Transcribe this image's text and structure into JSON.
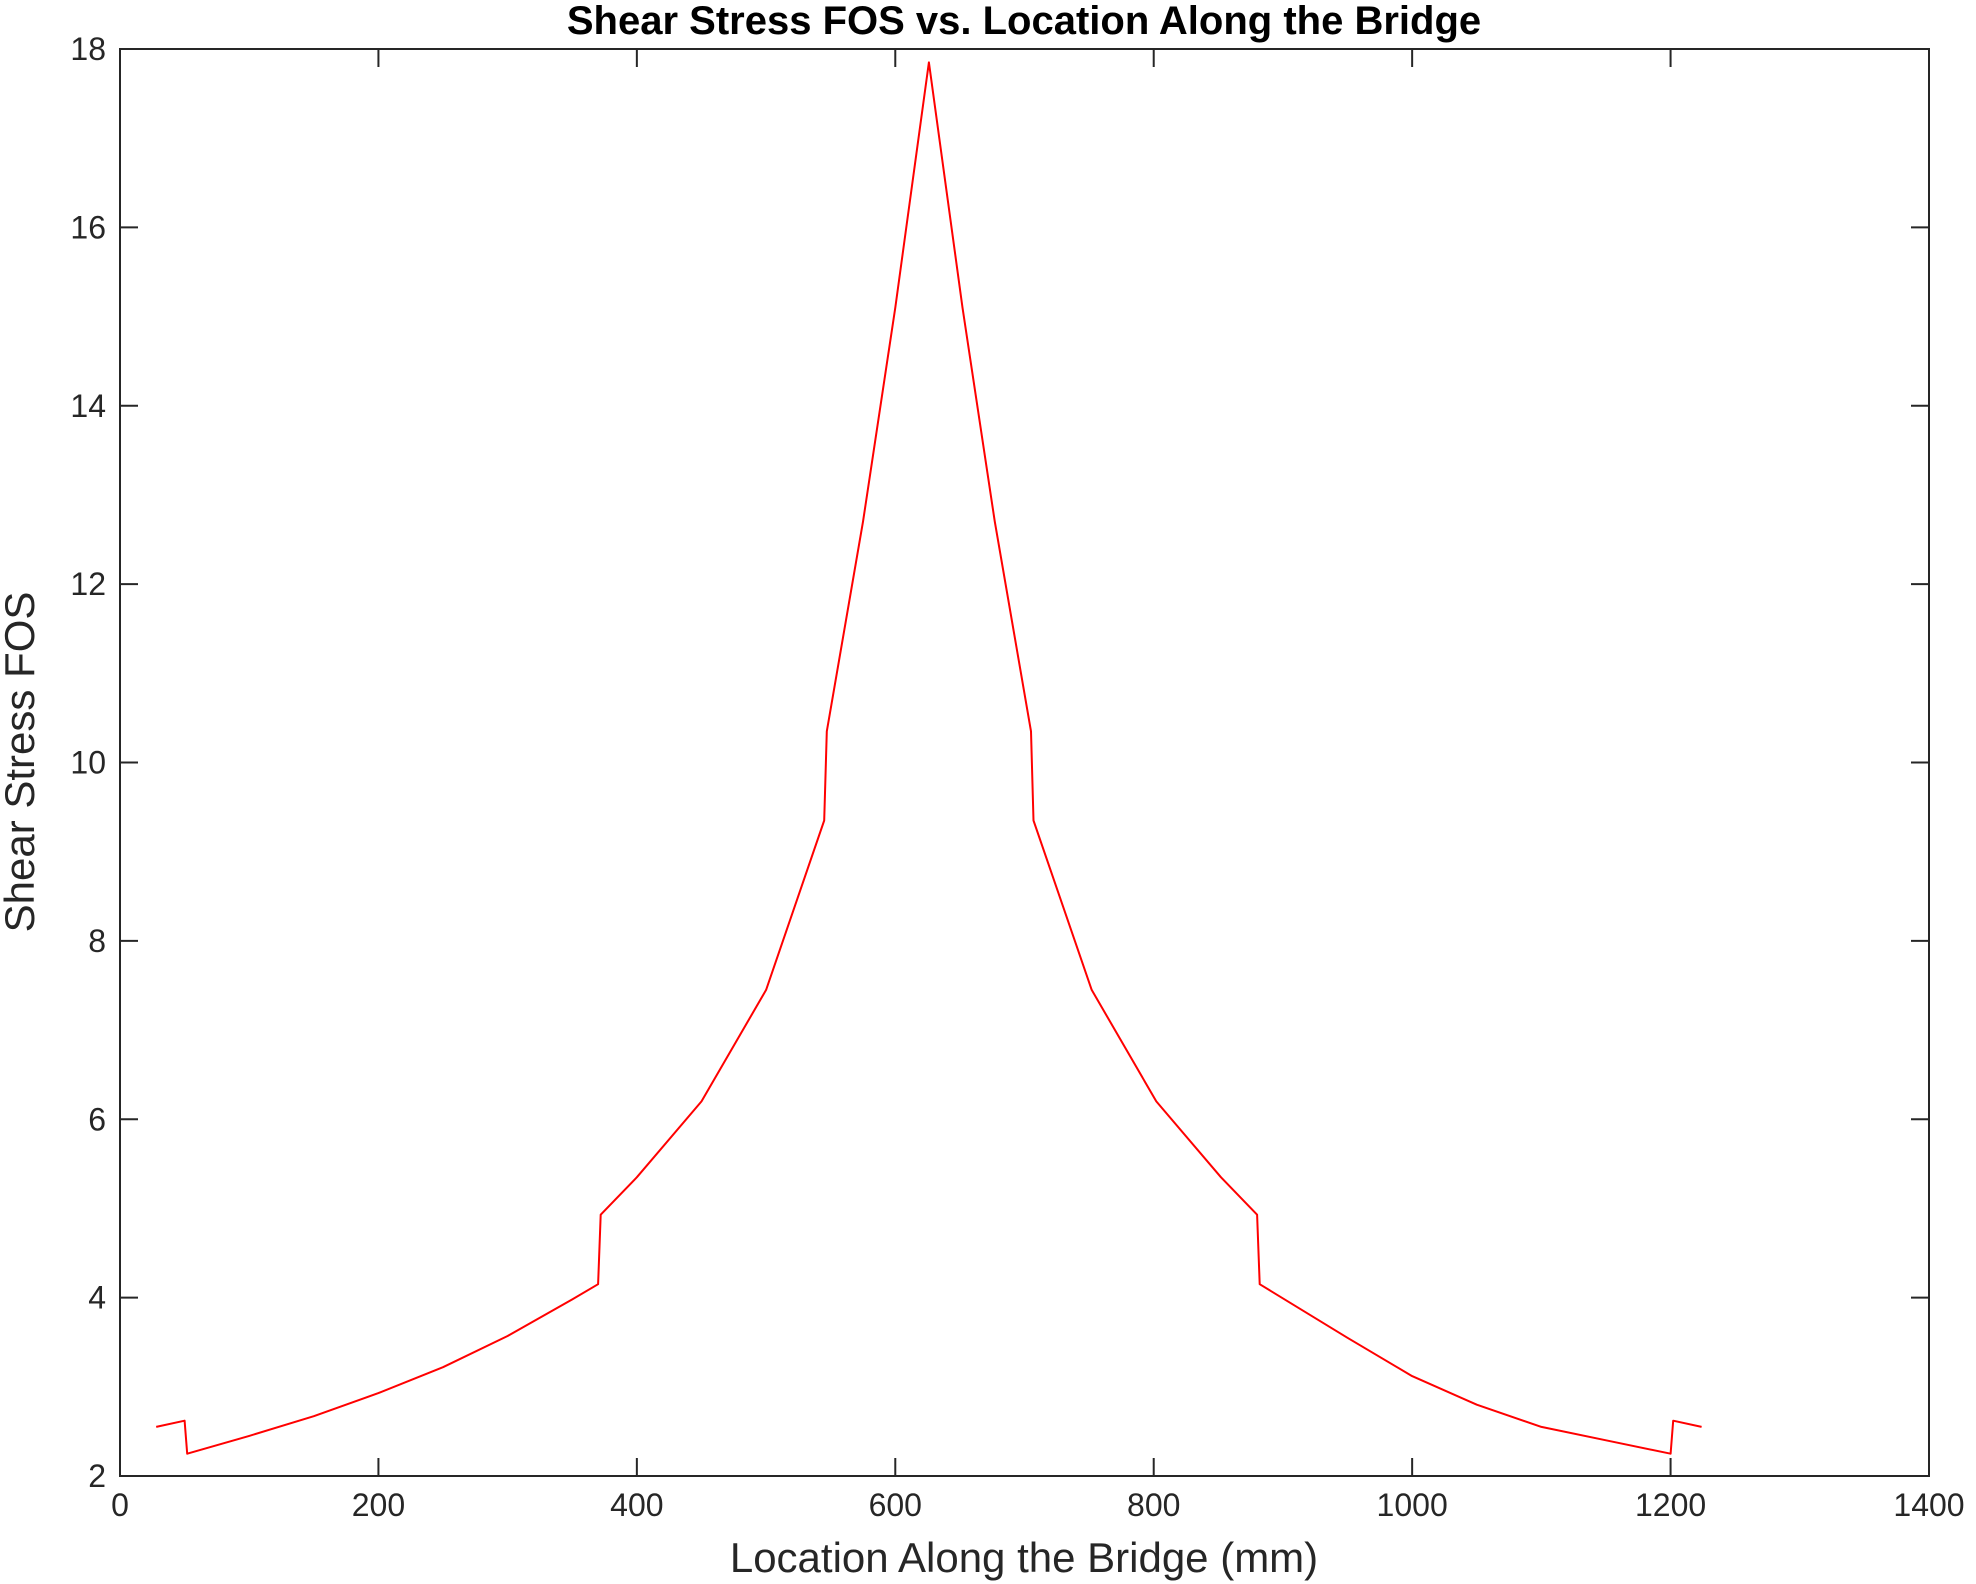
{
  "chart_data": {
    "type": "line",
    "title": "Shear Stress FOS vs. Location Along the Bridge",
    "xlabel": "Location Along the Bridge (mm)",
    "ylabel": "Shear Stress FOS",
    "xlim": [
      0,
      1400
    ],
    "ylim": [
      2,
      18
    ],
    "xticks": [
      0,
      200,
      400,
      600,
      800,
      1000,
      1200,
      1400
    ],
    "yticks": [
      2,
      4,
      6,
      8,
      10,
      12,
      14,
      16,
      18
    ],
    "grid": false,
    "colors": {
      "line": "#ff0000",
      "axes": "#262626"
    },
    "series": [
      {
        "x": [
          28,
          50,
          52,
          100,
          150,
          200,
          250,
          300,
          350,
          370,
          372,
          400,
          450,
          500,
          545,
          547,
          575,
          600,
          626,
          652,
          677,
          705,
          707,
          752,
          802,
          852,
          880,
          882,
          950,
          1000,
          1050,
          1100,
          1150,
          1200,
          1202,
          1224
        ],
        "y": [
          2.55,
          2.62,
          2.25,
          2.45,
          2.67,
          2.93,
          3.22,
          3.57,
          3.98,
          4.15,
          4.93,
          5.35,
          6.2,
          7.45,
          9.35,
          10.35,
          12.7,
          15.1,
          17.85,
          15.1,
          12.7,
          10.35,
          9.35,
          7.45,
          6.2,
          5.35,
          4.93,
          4.15,
          3.55,
          3.12,
          2.8,
          2.55,
          2.4,
          2.25,
          2.62,
          2.55
        ]
      }
    ]
  }
}
